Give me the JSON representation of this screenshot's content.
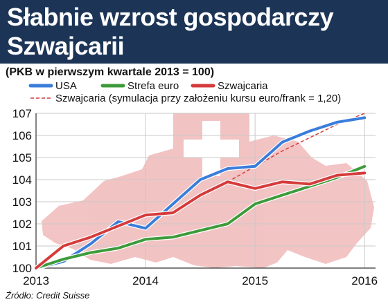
{
  "header": {
    "title_line1": "Słabnie wzrost gospodarczy",
    "title_line2": "Szwajcarii"
  },
  "subtitle": "(PKB w pierwszym kwartale 2013 = 100)",
  "source": "Źródło: Credit Suisse",
  "colors": {
    "header_bg": "#1c3557",
    "usa": "#3a7ddb",
    "strefa_euro": "#3e9b3b",
    "szwajcaria": "#d63b3b",
    "symulacja": "#d63b3b",
    "flag": "#d42b2b"
  },
  "chart_data": {
    "type": "line",
    "title": "Słabnie wzrost gospodarczy Szwajcarii",
    "subtitle": "(PKB w pierwszym kwartale 2013 = 100)",
    "xlabel": "",
    "ylabel": "",
    "x_ticks": [
      "2013",
      "2014",
      "2015",
      "2016"
    ],
    "y_ticks": [
      "100",
      "101",
      "102",
      "103",
      "104",
      "105",
      "106",
      "107"
    ],
    "xlim": [
      2013,
      2016.1
    ],
    "ylim": [
      100,
      107
    ],
    "grid": true,
    "legend_position": "top",
    "background_image": "swiss-map-with-flag",
    "series": [
      {
        "name": "USA",
        "style": "solid",
        "color": "#3a7ddb",
        "x": [
          2013,
          2013.25,
          2013.5,
          2013.75,
          2014,
          2014.25,
          2014.5,
          2014.75,
          2015,
          2015.25,
          2015.5,
          2015.75,
          2016
        ],
        "y": [
          100,
          100.3,
          101.1,
          102.1,
          101.8,
          102.9,
          104.0,
          104.5,
          104.6,
          105.7,
          106.2,
          106.6,
          106.8
        ]
      },
      {
        "name": "Strefa euro",
        "style": "solid",
        "color": "#3e9b3b",
        "x": [
          2013,
          2013.25,
          2013.5,
          2013.75,
          2014,
          2014.25,
          2014.5,
          2014.75,
          2015,
          2015.25,
          2015.5,
          2015.75,
          2016
        ],
        "y": [
          100,
          100.4,
          100.7,
          100.9,
          101.3,
          101.4,
          101.7,
          102.0,
          102.9,
          103.3,
          103.7,
          104.1,
          104.6
        ]
      },
      {
        "name": "Szwajcaria",
        "style": "solid",
        "color": "#d63b3b",
        "x": [
          2013,
          2013.25,
          2013.5,
          2013.75,
          2014,
          2014.25,
          2014.5,
          2014.75,
          2015,
          2015.25,
          2015.5,
          2015.75,
          2016
        ],
        "y": [
          100,
          101.0,
          101.4,
          101.9,
          102.4,
          102.5,
          103.3,
          103.9,
          103.6,
          103.9,
          103.8,
          104.2,
          104.3
        ]
      },
      {
        "name": "Szwajcaria (symulacja przy założeniu kursu euro/frank = 1,20)",
        "style": "dashed",
        "color": "#d63b3b",
        "x": [
          2014.75,
          2015,
          2015.25,
          2015.5,
          2015.75,
          2016
        ],
        "y": [
          103.9,
          104.6,
          105.3,
          105.9,
          106.5,
          107.0
        ]
      }
    ]
  }
}
